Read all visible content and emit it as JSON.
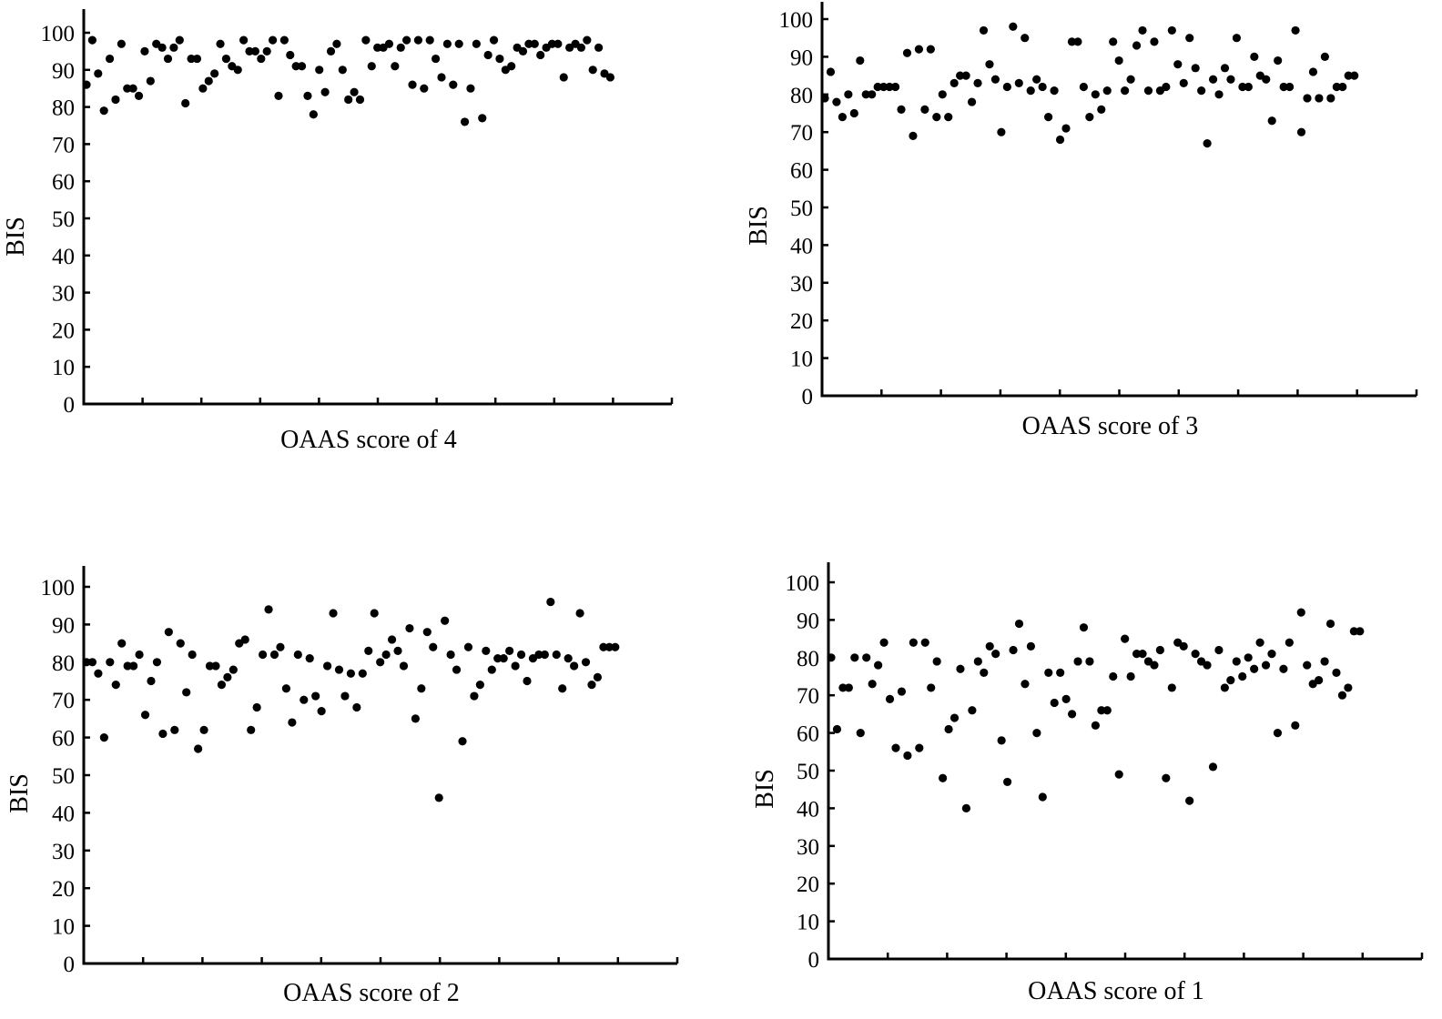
{
  "chart_data": [
    {
      "type": "scatter",
      "xlabel": "OAAS score of 4",
      "ylabel": "BIS",
      "ylim": [
        0,
        100
      ],
      "yticks": [
        0,
        10,
        20,
        30,
        40,
        50,
        60,
        70,
        80,
        90,
        100
      ],
      "grid": false,
      "x": [
        1,
        2,
        3,
        4,
        5,
        6,
        7,
        8,
        9,
        10,
        11,
        12,
        13,
        14,
        15,
        16,
        17,
        18,
        19,
        20,
        21,
        22,
        23,
        24,
        25,
        26,
        27,
        28,
        29,
        30,
        31,
        32,
        33,
        34,
        35,
        36,
        37,
        38,
        39,
        40,
        41,
        42,
        43,
        44,
        45,
        46,
        47,
        48,
        49,
        50,
        51,
        52,
        53,
        54,
        55,
        56,
        57,
        58,
        59,
        60,
        61,
        62,
        63,
        64,
        65,
        66,
        67,
        68,
        69,
        70,
        71,
        72,
        73,
        74,
        75,
        76,
        77,
        78,
        79,
        80,
        81,
        82,
        83,
        84,
        85,
        86,
        87,
        88,
        89,
        90,
        91
      ],
      "y": [
        86,
        98,
        89,
        79,
        93,
        82,
        97,
        85,
        85,
        83,
        95,
        87,
        97,
        96,
        93,
        96,
        98,
        81,
        93,
        93,
        85,
        87,
        89,
        97,
        93,
        91,
        90,
        98,
        95,
        95,
        93,
        95,
        98,
        83,
        98,
        94,
        91,
        91,
        83,
        78,
        90,
        84,
        95,
        97,
        90,
        82,
        84,
        82,
        98,
        91,
        96,
        96,
        97,
        91,
        96,
        98,
        86,
        98,
        85,
        98,
        93,
        88,
        97,
        86,
        97,
        76,
        85,
        97,
        77,
        94,
        98,
        93,
        90,
        91,
        96,
        95,
        97,
        97,
        94,
        96,
        97,
        97,
        88,
        96,
        97,
        96,
        98,
        90,
        96,
        89,
        88
      ]
    },
    {
      "type": "scatter",
      "xlabel": "OAAS score of 3",
      "ylabel": "BIS",
      "ylim": [
        0,
        100
      ],
      "yticks": [
        0,
        10,
        20,
        30,
        40,
        50,
        60,
        70,
        80,
        90,
        100
      ],
      "grid": false,
      "x": [
        1,
        2,
        3,
        4,
        5,
        6,
        7,
        8,
        9,
        10,
        11,
        12,
        13,
        14,
        15,
        16,
        17,
        18,
        19,
        20,
        21,
        22,
        23,
        24,
        25,
        26,
        27,
        28,
        29,
        30,
        31,
        32,
        33,
        34,
        35,
        36,
        37,
        38,
        39,
        40,
        41,
        42,
        43,
        44,
        45,
        46,
        47,
        48,
        49,
        50,
        51,
        52,
        53,
        54,
        55,
        56,
        57,
        58,
        59,
        60,
        61,
        62,
        63,
        64,
        65,
        66,
        67,
        68,
        69,
        70,
        71,
        72,
        73,
        74,
        75,
        76,
        77,
        78,
        79,
        80,
        81,
        82,
        83,
        84,
        85,
        86,
        87,
        88,
        89,
        90,
        91
      ],
      "y": [
        79,
        86,
        78,
        74,
        80,
        75,
        89,
        80,
        80,
        82,
        82,
        82,
        82,
        76,
        91,
        69,
        92,
        76,
        92,
        74,
        80,
        74,
        83,
        85,
        85,
        78,
        83,
        97,
        88,
        84,
        70,
        82,
        98,
        83,
        95,
        81,
        84,
        82,
        74,
        81,
        68,
        71,
        94,
        94,
        82,
        74,
        80,
        76,
        81,
        94,
        89,
        81,
        84,
        93,
        97,
        81,
        94,
        81,
        82,
        97,
        88,
        83,
        95,
        87,
        81,
        67,
        84,
        80,
        87,
        84,
        95,
        82,
        82,
        90,
        85,
        84,
        73,
        89,
        82,
        82,
        97,
        70,
        79,
        86,
        79,
        90,
        79,
        82,
        82,
        85,
        85
      ]
    },
    {
      "type": "scatter",
      "xlabel": "OAAS score of 2",
      "ylabel": "BIS",
      "ylim": [
        0,
        100
      ],
      "yticks": [
        0,
        10,
        20,
        30,
        40,
        50,
        60,
        70,
        80,
        90,
        100
      ],
      "grid": false,
      "x": [
        1,
        2,
        3,
        4,
        5,
        6,
        7,
        8,
        9,
        10,
        11,
        12,
        13,
        14,
        15,
        16,
        17,
        18,
        19,
        20,
        21,
        22,
        23,
        24,
        25,
        26,
        27,
        28,
        29,
        30,
        31,
        32,
        33,
        34,
        35,
        36,
        37,
        38,
        39,
        40,
        41,
        42,
        43,
        44,
        45,
        46,
        47,
        48,
        49,
        50,
        51,
        52,
        53,
        54,
        55,
        56,
        57,
        58,
        59,
        60,
        61,
        62,
        63,
        64,
        65,
        66,
        67,
        68,
        69,
        70,
        71,
        72,
        73,
        74,
        75,
        76,
        77,
        78,
        79,
        80,
        81,
        82,
        83,
        84,
        85,
        86,
        87,
        88,
        89,
        90,
        91
      ],
      "y": [
        80,
        80,
        77,
        60,
        80,
        74,
        85,
        79,
        79,
        82,
        66,
        75,
        80,
        61,
        88,
        62,
        85,
        72,
        82,
        57,
        62,
        79,
        79,
        74,
        76,
        78,
        85,
        86,
        62,
        68,
        82,
        94,
        82,
        84,
        73,
        64,
        82,
        70,
        81,
        71,
        67,
        79,
        93,
        78,
        71,
        77,
        68,
        77,
        83,
        93,
        80,
        82,
        86,
        83,
        79,
        89,
        65,
        73,
        88,
        84,
        44,
        91,
        82,
        78,
        59,
        84,
        71,
        74,
        83,
        78,
        81,
        81,
        83,
        79,
        82,
        75,
        81,
        82,
        82,
        96,
        82,
        73,
        81,
        79,
        93,
        80,
        74,
        76,
        84,
        84,
        84
      ]
    },
    {
      "type": "scatter",
      "xlabel": "OAAS score of 1",
      "ylabel": "BIS",
      "ylim": [
        0,
        100
      ],
      "yticks": [
        0,
        10,
        20,
        30,
        40,
        50,
        60,
        70,
        80,
        90,
        100
      ],
      "grid": false,
      "x": [
        1,
        2,
        3,
        4,
        5,
        6,
        7,
        8,
        9,
        10,
        11,
        12,
        13,
        14,
        15,
        16,
        17,
        18,
        19,
        20,
        21,
        22,
        23,
        24,
        25,
        26,
        27,
        28,
        29,
        30,
        31,
        32,
        33,
        34,
        35,
        36,
        37,
        38,
        39,
        40,
        41,
        42,
        43,
        44,
        45,
        46,
        47,
        48,
        49,
        50,
        51,
        52,
        53,
        54,
        55,
        56,
        57,
        58,
        59,
        60,
        61,
        62,
        63,
        64,
        65,
        66,
        67,
        68,
        69,
        70,
        71,
        72,
        73,
        74,
        75,
        76,
        77,
        78,
        79,
        80,
        81,
        82,
        83,
        84,
        85,
        86,
        87,
        88,
        89,
        90,
        91
      ],
      "y": [
        80,
        61,
        72,
        72,
        80,
        60,
        80,
        73,
        78,
        84,
        69,
        56,
        71,
        54,
        84,
        56,
        84,
        72,
        79,
        48,
        61,
        64,
        77,
        40,
        66,
        79,
        76,
        83,
        81,
        58,
        47,
        82,
        89,
        73,
        83,
        60,
        43,
        76,
        68,
        76,
        69,
        65,
        79,
        88,
        79,
        62,
        66,
        66,
        75,
        49,
        85,
        75,
        81,
        81,
        79,
        78,
        82,
        48,
        72,
        84,
        83,
        42,
        81,
        79,
        78,
        51,
        82,
        72,
        74,
        79,
        75,
        80,
        77,
        84,
        78,
        81,
        60,
        77,
        84,
        62,
        92,
        78,
        73,
        74,
        79,
        89,
        76,
        70,
        72,
        87,
        87
      ]
    }
  ]
}
